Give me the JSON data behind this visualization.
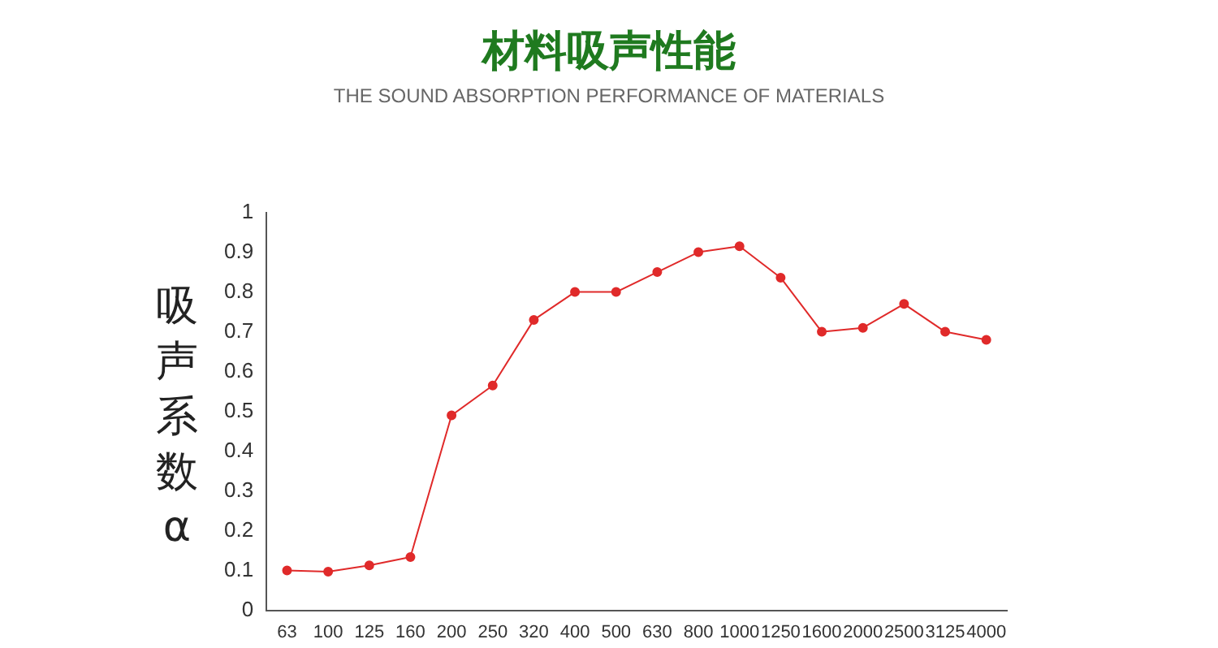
{
  "chart_data": {
    "type": "line",
    "title": "材料吸声性能",
    "subtitle": "THE SOUND ABSORPTION PERFORMANCE OF MATERIALS",
    "ylabel": "吸声系数α",
    "categories": [
      "63",
      "100",
      "125",
      "160",
      "200",
      "250",
      "320",
      "400",
      "500",
      "630",
      "800",
      "1000",
      "1250",
      "1600",
      "2000",
      "2500",
      "3125",
      "4000"
    ],
    "series": [
      {
        "color": "#e02a2a",
        "values": [
          0.1,
          0.097,
          0.113,
          0.134,
          0.49,
          0.565,
          0.73,
          0.8,
          0.8,
          0.85,
          0.9,
          0.915,
          0.836,
          0.7,
          0.71,
          0.77,
          0.7,
          0.68
        ]
      }
    ],
    "ylim": [
      0,
      1
    ],
    "yticks": [
      0,
      0.1,
      0.2,
      0.3,
      0.4,
      0.5,
      0.6,
      0.7,
      0.8,
      0.9,
      1
    ],
    "grid": false,
    "legend": false,
    "marker": "circle",
    "line_style": "solid"
  }
}
